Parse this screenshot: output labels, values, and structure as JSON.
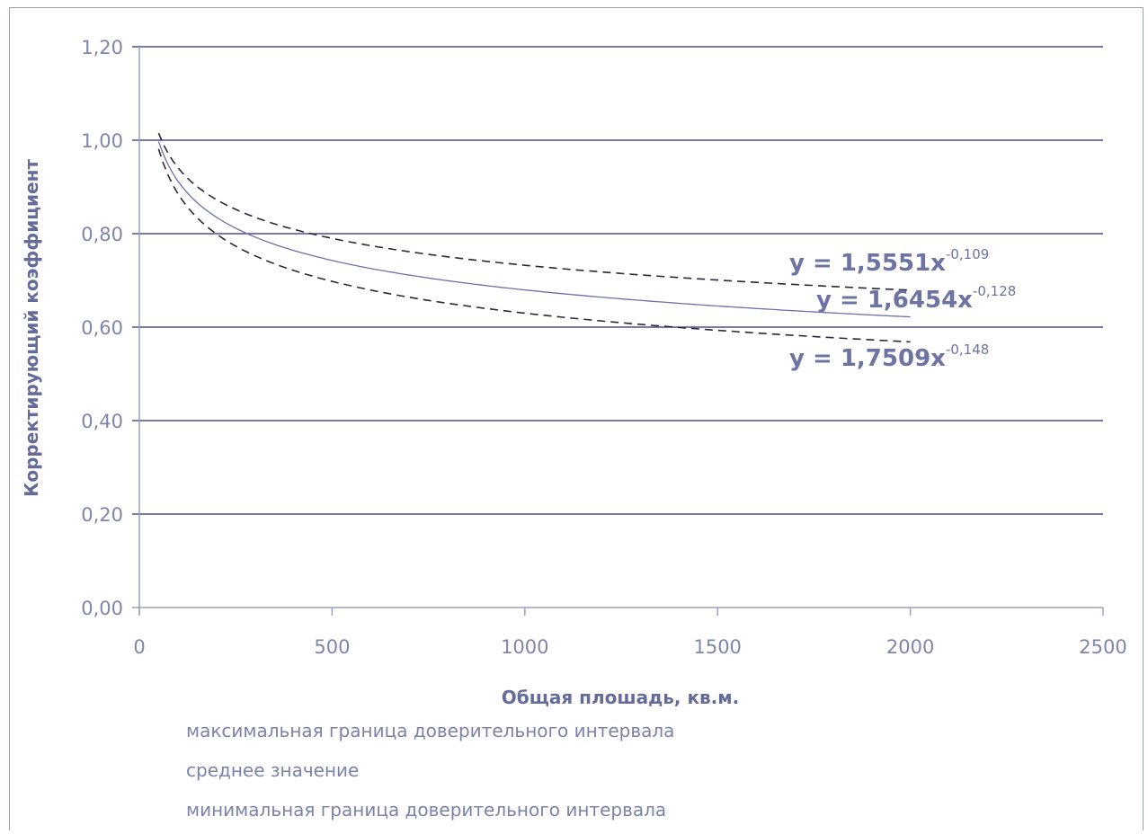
{
  "chart_data": {
    "type": "line",
    "xlabel": "Общая плошадь, кв.м.",
    "ylabel": "Корректирующий коэффициент",
    "xlim": [
      0,
      2500
    ],
    "ylim": [
      0,
      1.2
    ],
    "xticks": [
      "0",
      "500",
      "1000",
      "1500",
      "2000",
      "2500"
    ],
    "yticks": [
      "0,00",
      "0,20",
      "0,40",
      "0,60",
      "0,80",
      "1,00",
      "1,20"
    ],
    "grid": "horizontal",
    "legend_position": "bottom",
    "x_range_of_curves": [
      50,
      2000
    ],
    "series": [
      {
        "name": "максимальная граница доверительного интервала",
        "style": "dashed",
        "color": "#2a2a3a",
        "coef": 1.5551,
        "exponent": -0.109,
        "equation": {
          "base": "y = 1,5551x",
          "exp": "-0,109"
        }
      },
      {
        "name": "среднее значение",
        "style": "solid",
        "color": "#6b72a8",
        "coef": 1.6454,
        "exponent": -0.128,
        "equation": {
          "base": "y = 1,6454x",
          "exp": "-0,128"
        }
      },
      {
        "name": "минимальная граница доверительного интервала",
        "style": "dashed",
        "color": "#2a2a3a",
        "coef": 1.7509,
        "exponent": -0.148,
        "equation": {
          "base": "y = 1,7509x",
          "exp": "-0,148"
        }
      }
    ],
    "colors": {
      "gridline": "#4a4f8f",
      "axis": "#9aa0c2",
      "tick_text": "#7f86ab",
      "title_text": "#666c9a"
    }
  }
}
